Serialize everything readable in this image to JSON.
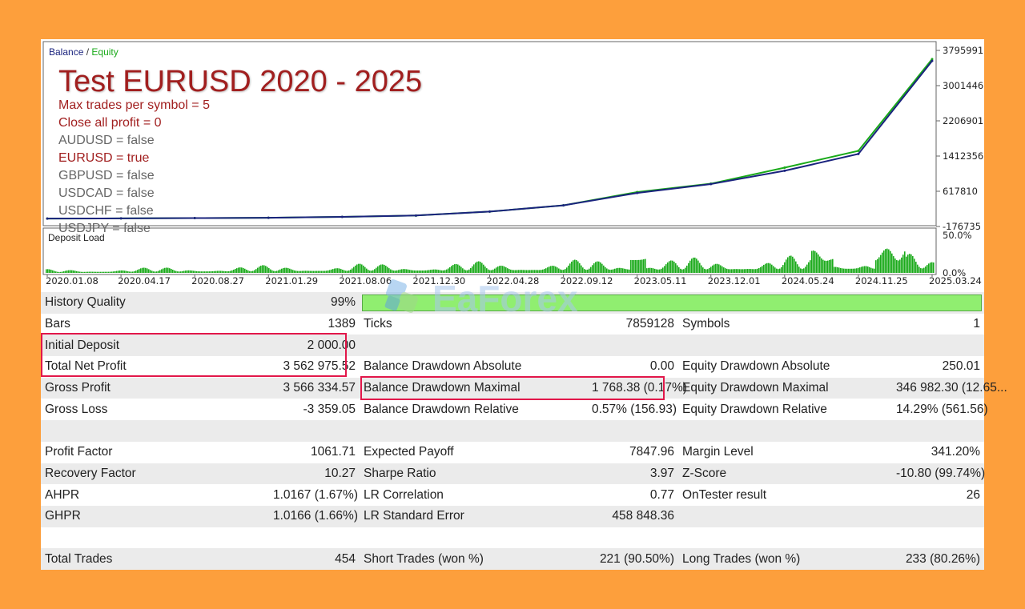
{
  "chart": {
    "legend": {
      "balance": "Balance",
      "separator": " / ",
      "equity": "Equity"
    },
    "title": "Test EURUSD 2020 - 2025",
    "params": [
      {
        "text": "Max trades per symbol = 5",
        "color": "#a11f1f"
      },
      {
        "text": "Close all profit = 0",
        "color": "#a11f1f"
      },
      {
        "text": "AUDUSD = false",
        "color": "#666666"
      },
      {
        "text": "EURUSD = true",
        "color": "#a11f1f"
      },
      {
        "text": "GBPUSD = false",
        "color": "#666666"
      },
      {
        "text": "USDCAD = false",
        "color": "#666666"
      },
      {
        "text": "USDCHF = false",
        "color": "#666666"
      },
      {
        "text": "USDJPY = false",
        "color": "#666666"
      }
    ],
    "deposit_load_label": "Deposit Load",
    "colors": {
      "balance": "#1a237e",
      "equity": "#1aaa1a",
      "deposit_load": "#1aaa1a"
    }
  },
  "chart_data": {
    "type": "line",
    "x": [
      "2020.01.08",
      "2020.04.17",
      "2020.08.27",
      "2021.01.29",
      "2021.08.06",
      "2021.12.30",
      "2022.04.28",
      "2022.09.12",
      "2023.05.11",
      "2023.12.01",
      "2024.05.24",
      "2024.11.25",
      "2025.03.24"
    ],
    "y_ticks": [
      "3795991",
      "3001446",
      "2206901",
      "1412356",
      "617810",
      "-176735"
    ],
    "ylim": [
      -176735,
      3795991
    ],
    "series": [
      {
        "name": "Balance",
        "values": [
          2000,
          5000,
          12000,
          20000,
          40000,
          70000,
          160000,
          300000,
          580000,
          780000,
          1080000,
          1460000,
          3560000
        ]
      },
      {
        "name": "Equity",
        "values": [
          2000,
          5000,
          12000,
          20000,
          40000,
          70000,
          160000,
          300000,
          600000,
          790000,
          1150000,
          1530000,
          3600000
        ]
      }
    ],
    "deposit_load": {
      "y_ticks": [
        "50.0%",
        "0.0%"
      ],
      "ylim": [
        0,
        50
      ]
    }
  },
  "stats": {
    "rows": [
      [
        {
          "label": "History Quality",
          "value": "99%",
          "type": "quality",
          "level": 99
        }
      ],
      [
        {
          "label": "Bars",
          "value": "1389"
        },
        {
          "label": "Ticks",
          "value": "7859128"
        },
        {
          "label": "Symbols",
          "value": "1"
        }
      ],
      [
        {
          "label": "Initial Deposit",
          "value": "2 000.00"
        },
        {
          "label": "",
          "value": ""
        },
        {
          "label": "",
          "value": ""
        }
      ],
      [
        {
          "label": "Total Net Profit",
          "value": "3 562 975.52"
        },
        {
          "label": "Balance Drawdown Absolute",
          "value": "0.00"
        },
        {
          "label": "Equity Drawdown Absolute",
          "value": "250.01"
        }
      ],
      [
        {
          "label": "Gross Profit",
          "value": "3 566 334.57"
        },
        {
          "label": "Balance Drawdown Maximal",
          "value": "1 768.38 (0.17%)"
        },
        {
          "label": "Equity Drawdown Maximal",
          "value": "346 982.30 (12.65..."
        }
      ],
      [
        {
          "label": "Gross Loss",
          "value": "-3 359.05"
        },
        {
          "label": "Balance Drawdown Relative",
          "value": "0.57% (156.93)"
        },
        {
          "label": "Equity Drawdown Relative",
          "value": "14.29% (561.56)"
        }
      ],
      [
        {
          "label": "",
          "value": ""
        },
        {
          "label": "",
          "value": ""
        },
        {
          "label": "",
          "value": ""
        }
      ],
      [
        {
          "label": "Profit Factor",
          "value": "1061.71"
        },
        {
          "label": "Expected Payoff",
          "value": "7847.96"
        },
        {
          "label": "Margin Level",
          "value": "341.20%"
        }
      ],
      [
        {
          "label": "Recovery Factor",
          "value": "10.27"
        },
        {
          "label": "Sharpe Ratio",
          "value": "3.97"
        },
        {
          "label": "Z-Score",
          "value": "-10.80 (99.74%)"
        }
      ],
      [
        {
          "label": "AHPR",
          "value": "1.0167 (1.67%)"
        },
        {
          "label": "LR Correlation",
          "value": "0.77"
        },
        {
          "label": "OnTester result",
          "value": "26"
        }
      ],
      [
        {
          "label": "GHPR",
          "value": "1.0166 (1.66%)"
        },
        {
          "label": "LR Standard Error",
          "value": "458 848.36"
        },
        {
          "label": "",
          "value": ""
        }
      ],
      [
        {
          "label": "",
          "value": ""
        },
        {
          "label": "",
          "value": ""
        },
        {
          "label": "",
          "value": ""
        }
      ],
      [
        {
          "label": "Total Trades",
          "value": "454"
        },
        {
          "label": "Short Trades (won %)",
          "value": "221 (90.50%)"
        },
        {
          "label": "Long Trades (won %)",
          "value": "233 (80.26%)"
        }
      ]
    ]
  },
  "watermark": {
    "text": "EaForex"
  }
}
